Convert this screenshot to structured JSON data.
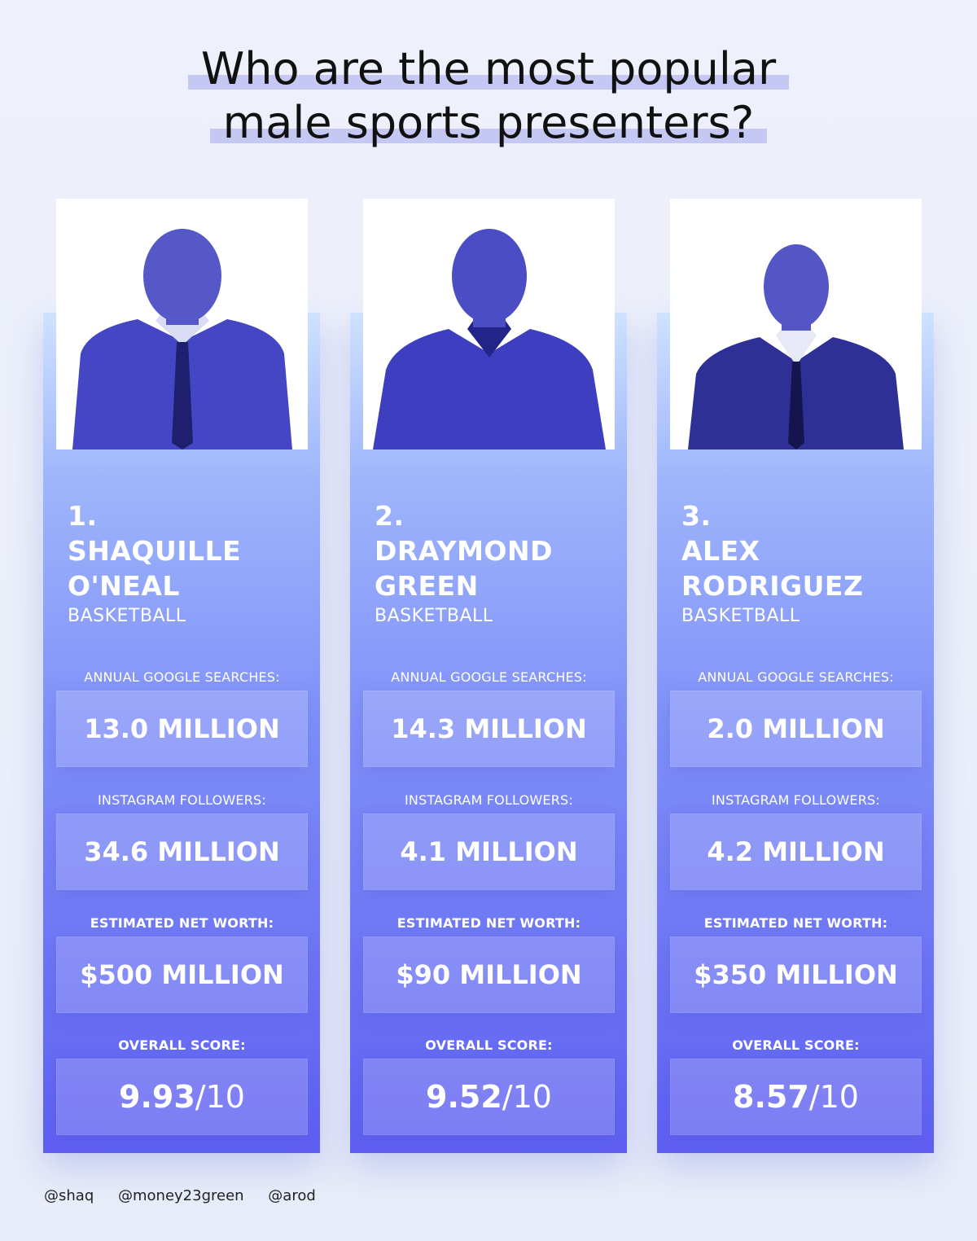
{
  "title": {
    "line1": "Who are the most popular",
    "line2": "male sports presenters?"
  },
  "presenters": [
    {
      "rank": "1.",
      "name_line1": "SHAQUILLE",
      "name_line2": "O'NEAL",
      "sport": "BASKETBALL",
      "searches_label": "ANNUAL GOOGLE SEARCHES:",
      "searches_value": "13.0 MILLION",
      "instagram_label": "INSTAGRAM FOLLOWERS:",
      "instagram_value": "34.6 MILLION",
      "networth_label": "ESTIMATED NET WORTH:",
      "networth_value": "$500 MILLION",
      "score_label": "OVERALL SCORE:",
      "score_value": "9.93",
      "score_max": "/10"
    },
    {
      "rank": "2.",
      "name_line1": "DRAYMOND",
      "name_line2": "GREEN",
      "sport": "BASKETBALL",
      "searches_label": "ANNUAL GOOGLE SEARCHES:",
      "searches_value": "14.3 MILLION",
      "instagram_label": "INSTAGRAM FOLLOWERS:",
      "instagram_value": "4.1 MILLION",
      "networth_label": "ESTIMATED NET WORTH:",
      "networth_value": "$90 MILLION",
      "score_label": "OVERALL SCORE:",
      "score_value": "9.52",
      "score_max": "/10"
    },
    {
      "rank": "3.",
      "name_line1": "ALEX",
      "name_line2": "RODRIGUEZ",
      "sport": "BASKETBALL",
      "searches_label": "ANNUAL GOOGLE SEARCHES:",
      "searches_value": "2.0 MILLION",
      "instagram_label": "INSTAGRAM FOLLOWERS:",
      "instagram_value": "4.2 MILLION",
      "networth_label": "ESTIMATED NET WORTH:",
      "networth_value": "$350 MILLION",
      "score_label": "OVERALL SCORE:",
      "score_value": "8.57",
      "score_max": "/10"
    }
  ],
  "handles": [
    "@shaq",
    "@money23green",
    "@arod"
  ],
  "colors": {
    "background": "#eef1fb",
    "card_top": "#cfe2ff",
    "card_bottom": "#5e5ff1",
    "title_highlight": "#c6c8f4",
    "figure_suit": "#3d3fc0"
  }
}
